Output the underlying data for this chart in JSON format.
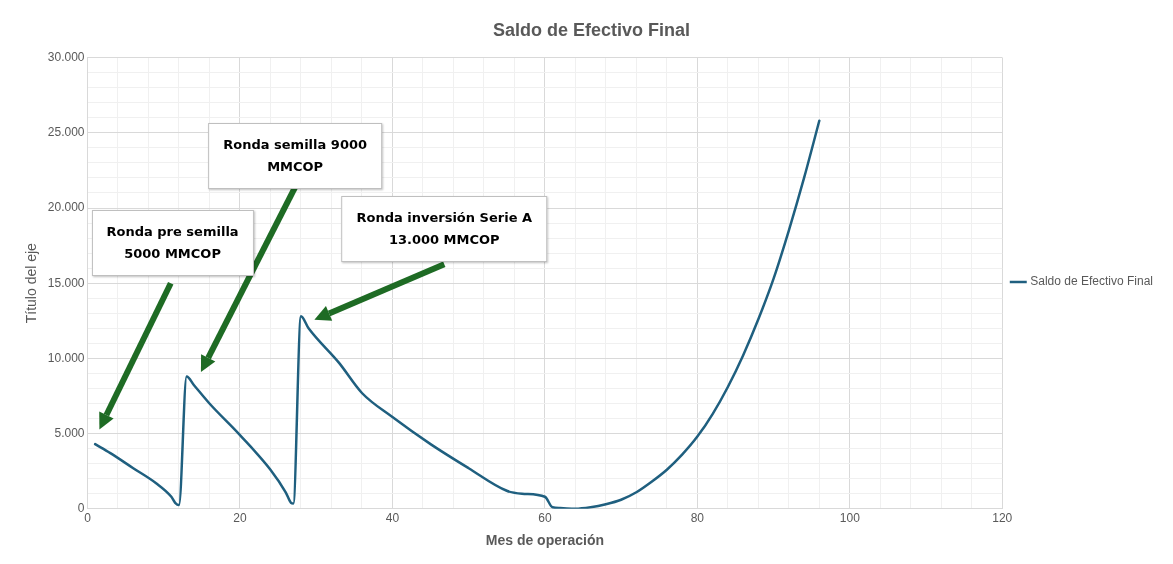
{
  "chart_data": {
    "type": "line",
    "title": "Saldo de Efectivo Final",
    "xlabel": "Mes de operación",
    "ylabel": "Título del eje",
    "xlim": [
      0,
      120
    ],
    "xticks": [
      0,
      {
        "value": 4,
        "label": null
      },
      {
        "value": 8,
        "label": null
      },
      {
        "value": 12,
        "label": null
      },
      {
        "value": 16,
        "label": null
      },
      20,
      {
        "value": 24,
        "label": null
      },
      {
        "value": 28,
        "label": null
      },
      {
        "value": 32,
        "label": null
      },
      {
        "value": 36,
        "label": null
      },
      40,
      {
        "value": 44,
        "label": null
      },
      {
        "value": 48,
        "label": null
      },
      {
        "value": 52,
        "label": null
      },
      {
        "value": 56,
        "label": null
      },
      60,
      {
        "value": 64,
        "label": null
      },
      {
        "value": 68,
        "label": null
      },
      {
        "value": 72,
        "label": null
      },
      {
        "value": 76,
        "label": null
      },
      80,
      {
        "value": 84,
        "label": null
      },
      {
        "value": 88,
        "label": null
      },
      {
        "value": 92,
        "label": null
      },
      {
        "value": 96,
        "label": null
      },
      100,
      {
        "value": 104,
        "label": null
      },
      {
        "value": 108,
        "label": null
      },
      {
        "value": 112,
        "label": null
      },
      {
        "value": 116,
        "label": null
      },
      120
    ],
    "ylim": [
      0,
      30000
    ],
    "yticks": [
      0,
      {
        "value": 1000,
        "label": null
      },
      {
        "value": 2000,
        "label": null
      },
      {
        "value": 3000,
        "label": null
      },
      {
        "value": 4000,
        "label": null
      },
      {
        "value": 5000,
        "label": "5.000"
      },
      {
        "value": 6000,
        "label": null
      },
      {
        "value": 7000,
        "label": null
      },
      {
        "value": 8000,
        "label": null
      },
      {
        "value": 9000,
        "label": null
      },
      {
        "value": 10000,
        "label": "10.000"
      },
      {
        "value": 11000,
        "label": null
      },
      {
        "value": 12000,
        "label": null
      },
      {
        "value": 13000,
        "label": null
      },
      {
        "value": 14000,
        "label": null
      },
      {
        "value": 15000,
        "label": "15.000"
      },
      {
        "value": 16000,
        "label": null
      },
      {
        "value": 17000,
        "label": null
      },
      {
        "value": 18000,
        "label": null
      },
      {
        "value": 19000,
        "label": null
      },
      {
        "value": 20000,
        "label": "20.000"
      },
      {
        "value": 21000,
        "label": null
      },
      {
        "value": 22000,
        "label": null
      },
      {
        "value": 23000,
        "label": null
      },
      {
        "value": 24000,
        "label": null
      },
      {
        "value": 25000,
        "label": "25.000"
      },
      {
        "value": 26000,
        "label": null
      },
      {
        "value": 27000,
        "label": null
      },
      {
        "value": 28000,
        "label": null
      },
      {
        "value": 29000,
        "label": null
      },
      {
        "value": 30000,
        "label": "30.000"
      }
    ],
    "grid": true,
    "legend": "right",
    "marker": "none",
    "line_style": "solid",
    "series": [
      {
        "name": "Saldo de Efectivo Final",
        "color": "#1f5f7f",
        "x": [
          1,
          3,
          6,
          9,
          11,
          11.5,
          12,
          13,
          14,
          16,
          20,
          24,
          26,
          26.7,
          27,
          28,
          29,
          33,
          36,
          40,
          45,
          50,
          55,
          57,
          60,
          61,
          62,
          64,
          66,
          68,
          70,
          72,
          74,
          76,
          78,
          80,
          82,
          84,
          86,
          88,
          90,
          92,
          94,
          96
        ],
        "values": [
          4300,
          3700,
          2700,
          1700,
          800,
          400,
          250,
          8800,
          8200,
          7000,
          4900,
          2600,
          1100,
          400,
          350,
          12800,
          12000,
          9700,
          7700,
          6100,
          4300,
          2700,
          1200,
          1000,
          800,
          100,
          50,
          0,
          100,
          300,
          600,
          1100,
          1800,
          2600,
          3600,
          4800,
          6300,
          8100,
          10200,
          12600,
          15300,
          18500,
          22000,
          25800
        ]
      }
    ],
    "annotations": [
      "Ronda pre semilla\n5000 MMCOP",
      "Ronda semilla 9000\nMMCOP",
      "Ronda inversión Serie A\n13.000 MMCOP"
    ]
  }
}
